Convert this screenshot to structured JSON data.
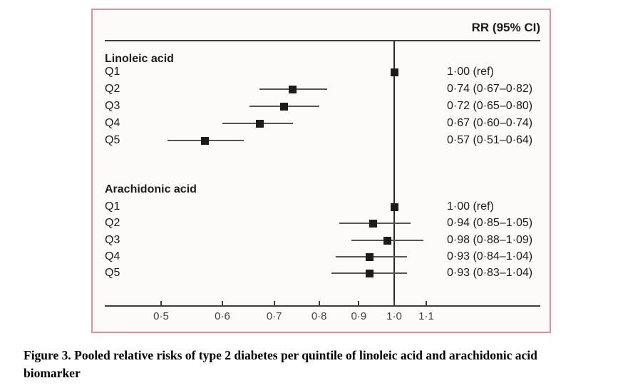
{
  "figure": {
    "header_rr": "RR (95% CI)",
    "caption_line1": "Figure 3. Pooled relative risks of type 2 diabetes per quintile of linoleic acid and arachidonic acid",
    "caption_line2": "biomarker"
  },
  "colors": {
    "border_pink": "#e68ca0",
    "axis_dark": "#3c3c3c",
    "reference_line": "#2a2a2a",
    "marker_black": "#1b1b1b",
    "ci_gray": "#555555",
    "text": "#1c1c1c"
  },
  "chart_data": {
    "type": "forest",
    "title": "",
    "xlabel": "",
    "x_axis": {
      "scale": "log",
      "ticks": [
        0.5,
        0.6,
        0.7,
        0.8,
        0.9,
        1.0,
        1.1
      ],
      "tick_labels": [
        "0·5",
        "0·6",
        "0·7",
        "0·8",
        "0·9",
        "1·0",
        "1·1"
      ],
      "reference_value": 1.0,
      "xlim": [
        0.44,
        1.35
      ]
    },
    "value_column_header": "RR (95% CI)",
    "sections": [
      {
        "label": "Linoleic acid",
        "rows": [
          {
            "label": "Q1",
            "rr": 1.0,
            "lo": null,
            "hi": null,
            "text": "1·00 (ref)"
          },
          {
            "label": "Q2",
            "rr": 0.74,
            "lo": 0.67,
            "hi": 0.82,
            "text": "0·74 (0·67–0·82)"
          },
          {
            "label": "Q3",
            "rr": 0.72,
            "lo": 0.65,
            "hi": 0.8,
            "text": "0·72 (0·65–0·80)"
          },
          {
            "label": "Q4",
            "rr": 0.67,
            "lo": 0.6,
            "hi": 0.74,
            "text": "0·67 (0·60–0·74)"
          },
          {
            "label": "Q5",
            "rr": 0.57,
            "lo": 0.51,
            "hi": 0.64,
            "text": "0·57 (0·51–0·64)"
          }
        ]
      },
      {
        "label": "Arachidonic acid",
        "rows": [
          {
            "label": "Q1",
            "rr": 1.0,
            "lo": null,
            "hi": null,
            "text": "1·00 (ref)"
          },
          {
            "label": "Q2",
            "rr": 0.94,
            "lo": 0.85,
            "hi": 1.05,
            "text": "0·94 (0·85–1·05)"
          },
          {
            "label": "Q3",
            "rr": 0.98,
            "lo": 0.88,
            "hi": 1.09,
            "text": "0·98 (0·88–1·09)"
          },
          {
            "label": "Q4",
            "rr": 0.93,
            "lo": 0.84,
            "hi": 1.04,
            "text": "0·93 (0·84–1·04)"
          },
          {
            "label": "Q5",
            "rr": 0.93,
            "lo": 0.83,
            "hi": 1.04,
            "text": "0·93 (0·83–1·04)"
          }
        ]
      }
    ]
  }
}
